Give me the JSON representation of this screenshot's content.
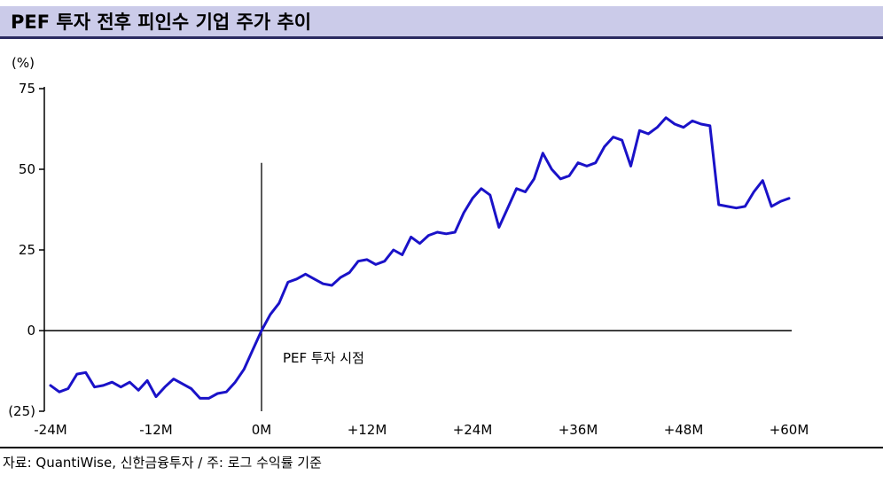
{
  "header": {
    "title": "PEF 투자 전후 피인수 기업 주가 추이"
  },
  "footer": {
    "source": "자료: QuantiWise, 신한금융투자 / 주: 로그 수익률 기준"
  },
  "chart_data": {
    "type": "line",
    "title": "PEF 투자 전후 피인수 기업 주가 추이",
    "unit": "(%)",
    "xlabel": "",
    "ylabel": "(%)",
    "xlim": [
      -24,
      60
    ],
    "ylim": [
      -25,
      75
    ],
    "grid": false,
    "legend": false,
    "line_color": "#1a12c8",
    "axis_color": "#000000",
    "xticks": {
      "values": [
        -24,
        -12,
        0,
        12,
        24,
        36,
        48,
        60
      ],
      "labels": [
        "-24M",
        "-12M",
        "0M",
        "+12M",
        "+24M",
        "+36M",
        "+48M",
        "+60M"
      ]
    },
    "yticks": {
      "values": [
        75,
        50,
        25,
        0,
        -25
      ],
      "labels": [
        "75",
        "50",
        "25",
        "0",
        "(25)"
      ]
    },
    "event_line": {
      "x": 0,
      "label": "PEF 투자 시점",
      "y_top": 52
    },
    "x": [
      -24,
      -23,
      -22,
      -21,
      -20,
      -19,
      -18,
      -17,
      -16,
      -15,
      -14,
      -13,
      -12,
      -11,
      -10,
      -9,
      -8,
      -7,
      -6,
      -5,
      -4,
      -3,
      -2,
      -1,
      0,
      1,
      2,
      3,
      4,
      5,
      6,
      7,
      8,
      9,
      10,
      11,
      12,
      13,
      14,
      15,
      16,
      17,
      18,
      19,
      20,
      21,
      22,
      23,
      24,
      25,
      26,
      27,
      28,
      29,
      30,
      31,
      32,
      33,
      34,
      35,
      36,
      37,
      38,
      39,
      40,
      41,
      42,
      43,
      44,
      45,
      46,
      47,
      48,
      49,
      50,
      51,
      52,
      53,
      54,
      55,
      56,
      57,
      58,
      59,
      60
    ],
    "y": [
      -17,
      -19,
      -18,
      -13.5,
      -13,
      -17.5,
      -17,
      -16,
      -17.5,
      -16,
      -18.5,
      -15.5,
      -20.5,
      -17.5,
      -15,
      -16.5,
      -18,
      -21,
      -21,
      -19.5,
      -19,
      -16,
      -12,
      -6,
      0,
      5,
      8.5,
      15,
      16,
      17.5,
      16,
      14.5,
      14,
      16.5,
      18,
      21.5,
      22,
      20.5,
      21.5,
      25,
      23.5,
      29,
      27,
      29.5,
      30.5,
      30,
      30.5,
      36.5,
      41,
      44,
      42,
      32,
      38,
      44,
      43,
      47,
      55,
      50,
      47,
      48,
      52,
      51,
      52,
      57,
      60,
      59,
      51,
      62,
      61,
      63,
      66,
      64,
      63,
      65,
      64,
      63.5,
      39,
      38.5,
      38,
      38.5,
      43,
      46.5,
      38.5,
      40,
      41
    ]
  }
}
